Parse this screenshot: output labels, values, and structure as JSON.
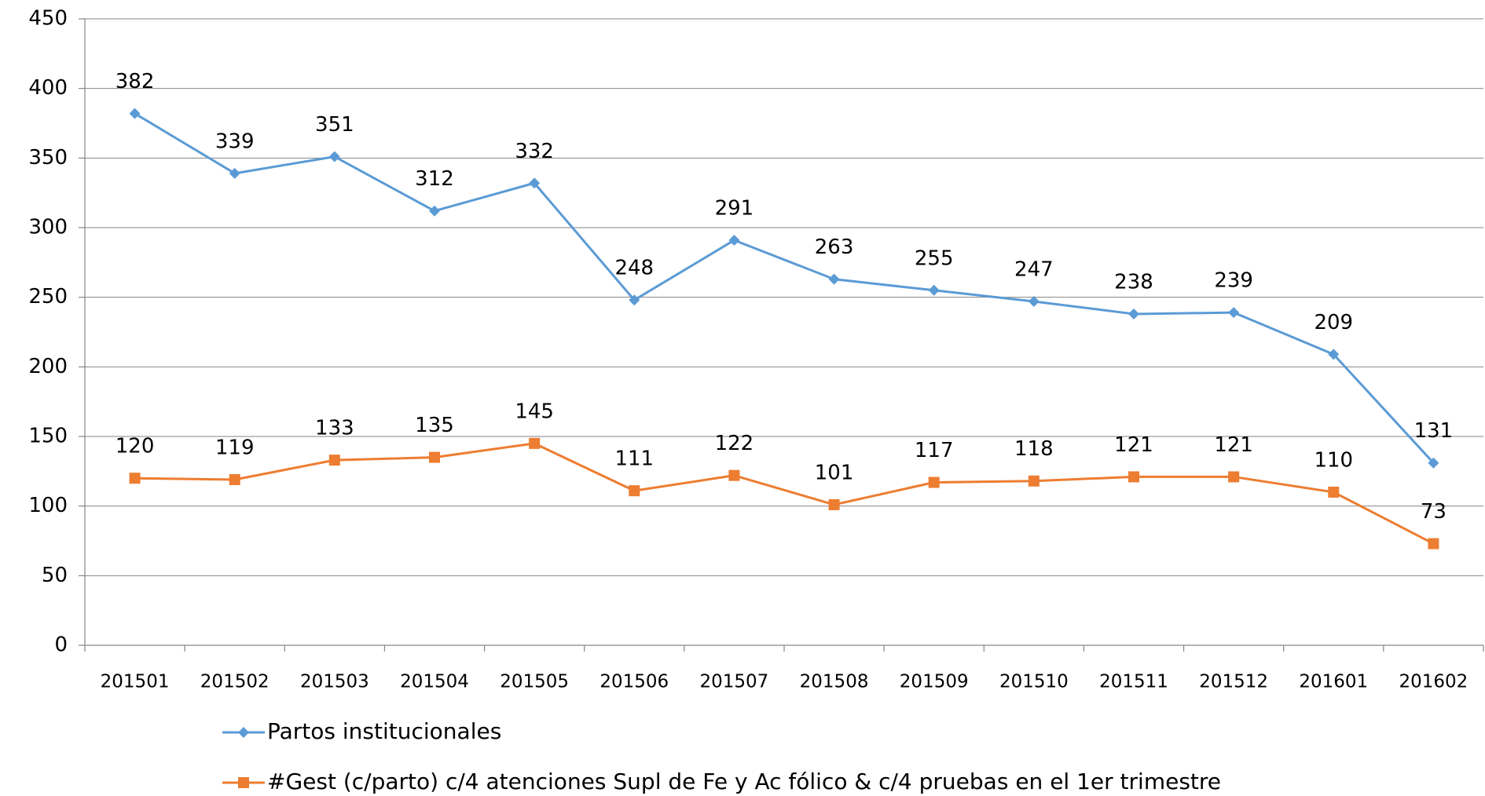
{
  "chart_data": {
    "type": "line",
    "categories": [
      "201501",
      "201502",
      "201503",
      "201504",
      "201505",
      "201506",
      "201507",
      "201508",
      "201509",
      "201510",
      "201511",
      "201512",
      "201601",
      "201602"
    ],
    "series": [
      {
        "name": "Partos institucionales",
        "color": "#5b9bd5",
        "marker": "diamond",
        "values": [
          382,
          339,
          351,
          312,
          332,
          248,
          291,
          263,
          255,
          247,
          238,
          239,
          209,
          131
        ]
      },
      {
        "name": "#Gest (c/parto) c/4 atenciones Supl de Fe y Ac fólico & c/4 pruebas en el 1er trimestre",
        "color": "#ed7d31",
        "marker": "square",
        "values": [
          120,
          119,
          133,
          135,
          145,
          111,
          122,
          101,
          117,
          118,
          121,
          121,
          110,
          73
        ]
      }
    ],
    "ylim": [
      0,
      450
    ],
    "yticks": [
      0,
      50,
      100,
      150,
      200,
      250,
      300,
      350,
      400,
      450
    ],
    "grid": true,
    "legend": "bottom",
    "data_labels": true
  }
}
